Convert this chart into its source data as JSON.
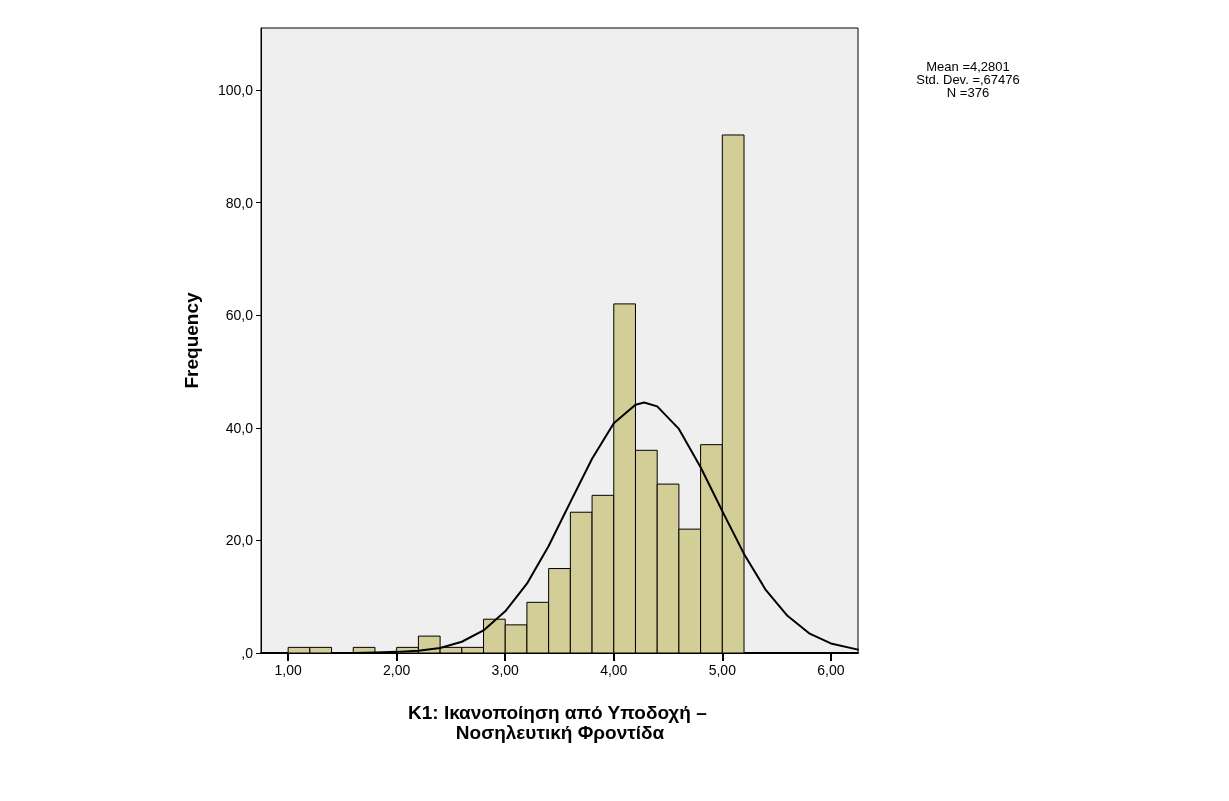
{
  "chart_data": {
    "type": "histogram",
    "xlabel": "K1: Ικανοποίηση από Υποδοχή – Νοσηλευτική Φροντίδα",
    "ylabel": "Frequency",
    "annotations": [
      "Mean =4,2801",
      "Std. Dev. =,67476",
      "N =376"
    ],
    "bins": [
      1.0,
      1.2,
      1.4,
      1.6,
      1.8,
      2.0,
      2.2,
      2.4,
      2.6,
      2.8,
      3.0,
      3.2,
      3.4,
      3.6,
      3.8,
      4.0,
      4.2,
      4.4,
      4.6,
      4.8,
      5.0,
      5.2
    ],
    "series": [
      {
        "color": "#d3ce97",
        "values": [
          1,
          1,
          0,
          1,
          0,
          1,
          3,
          1,
          1,
          6,
          5,
          9,
          15,
          25,
          28,
          62,
          36,
          30,
          22,
          37,
          92
        ]
      },
      {
        "type": "line",
        "color": "#000000",
        "x": [
          1.6,
          1.8,
          2.0,
          2.2,
          2.4,
          2.6,
          2.8,
          3.0,
          3.2,
          3.4,
          3.6,
          3.8,
          4.0,
          4.2,
          4.28,
          4.4,
          4.6,
          4.8,
          5.0,
          5.2,
          5.4,
          5.6,
          5.8,
          6.0,
          6.25
        ],
        "values": [
          0.0,
          0.1,
          0.2,
          0.4,
          0.9,
          2.0,
          4.0,
          7.4,
          12.3,
          19.0,
          26.8,
          34.5,
          40.8,
          44.1,
          44.5,
          43.8,
          39.8,
          33.0,
          25.2,
          17.6,
          11.2,
          6.6,
          3.5,
          1.7,
          0.6
        ]
      }
    ],
    "marker": "none",
    "line_style": "solid",
    "xlim": [
      0.75,
      6.25
    ],
    "xticks": [
      {
        "value": 1,
        "label": "1,00"
      },
      {
        "value": 2,
        "label": "2,00"
      },
      {
        "value": 3,
        "label": "3,00"
      },
      {
        "value": 4,
        "label": "4,00"
      },
      {
        "value": 5,
        "label": "5,00"
      },
      {
        "value": 6,
        "label": "6,00"
      }
    ],
    "ylim": [
      0,
      111
    ],
    "yticks": [
      {
        "value": 0,
        "label": ",0"
      },
      {
        "value": 20,
        "label": "20,0"
      },
      {
        "value": 40,
        "label": "40,0"
      },
      {
        "value": 60,
        "label": "60,0"
      },
      {
        "value": 80,
        "label": "80,0"
      },
      {
        "value": 100,
        "label": "100,0"
      }
    ]
  }
}
